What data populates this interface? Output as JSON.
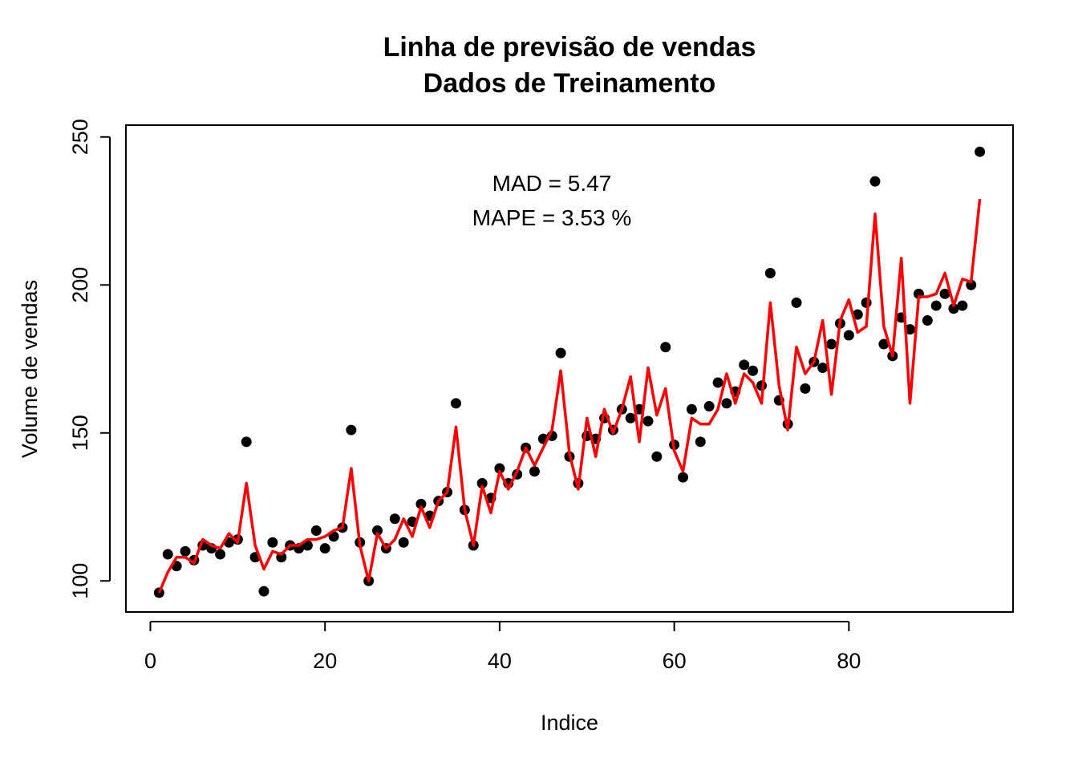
{
  "chart_data": {
    "type": "scatter",
    "title": "Linha de previsão de vendas",
    "subtitle": "Dados de Treinamento",
    "xlabel": "Indice",
    "ylabel": "Volume de vendas",
    "xlim": [
      -2.8,
      98.8
    ],
    "ylim": [
      89.5,
      254
    ],
    "xticks": [
      0,
      20,
      40,
      60,
      80
    ],
    "yticks": [
      100,
      150,
      200,
      250
    ],
    "grid": false,
    "annotations": [
      "MAD = 5.47",
      "MAPE = 3.53 %"
    ],
    "colors": {
      "points": "#000000",
      "line": "#ff0000"
    },
    "series": [
      {
        "kind": "points",
        "x": [
          1,
          2,
          3,
          4,
          5,
          6,
          7,
          8,
          9,
          10,
          11,
          12,
          13,
          14,
          15,
          16,
          17,
          18,
          19,
          20,
          21,
          22,
          23,
          24,
          25,
          26,
          27,
          28,
          29,
          30,
          31,
          32,
          33,
          34,
          35,
          36,
          37,
          38,
          39,
          40,
          41,
          42,
          43,
          44,
          45,
          46,
          47,
          48,
          49,
          50,
          51,
          52,
          53,
          54,
          55,
          56,
          57,
          58,
          59,
          60,
          61,
          62,
          63,
          64,
          65,
          66,
          67,
          68,
          69,
          70,
          71,
          72,
          73,
          74,
          75,
          76,
          77,
          78,
          79,
          80,
          81,
          82,
          83,
          84,
          85,
          86,
          87,
          88,
          89,
          90,
          91,
          92,
          93,
          94,
          95
        ],
        "values": [
          96,
          109,
          105,
          110,
          107,
          112,
          111,
          109,
          113,
          114,
          147,
          108,
          96.5,
          113,
          108,
          112,
          111,
          112,
          117,
          111,
          115,
          118,
          151,
          113,
          100,
          117,
          111,
          121,
          113,
          120,
          126,
          122,
          127,
          130,
          160,
          124,
          112,
          133,
          128,
          138,
          133,
          136,
          145,
          137,
          148,
          149,
          177,
          142,
          133,
          149,
          148,
          155,
          151,
          158,
          155,
          158,
          154,
          142,
          179,
          146,
          135,
          158,
          147,
          159,
          167,
          160,
          164,
          173,
          171,
          166,
          204,
          161,
          153,
          194,
          165,
          174,
          172,
          180,
          187,
          183,
          190,
          194,
          235,
          180,
          176,
          189,
          185,
          197,
          188,
          193,
          197,
          192,
          193,
          200,
          245
        ]
      },
      {
        "kind": "line",
        "x": [
          1,
          2,
          3,
          4,
          5,
          6,
          7,
          8,
          9,
          10,
          11,
          12,
          13,
          14,
          15,
          16,
          17,
          18,
          19,
          20,
          21,
          22,
          23,
          24,
          25,
          26,
          27,
          28,
          29,
          30,
          31,
          32,
          33,
          34,
          35,
          36,
          37,
          38,
          39,
          40,
          41,
          42,
          43,
          44,
          45,
          46,
          47,
          48,
          49,
          50,
          51,
          52,
          53,
          54,
          55,
          56,
          57,
          58,
          59,
          60,
          61,
          62,
          63,
          64,
          65,
          66,
          67,
          68,
          69,
          70,
          71,
          72,
          73,
          74,
          75,
          76,
          77,
          78,
          79,
          80,
          81,
          82,
          83,
          84,
          85,
          86,
          87,
          88,
          89,
          90,
          91,
          92,
          93,
          94,
          95
        ],
        "values": [
          96,
          103,
          108,
          108,
          106,
          114,
          112,
          111,
          116,
          113,
          133,
          112,
          104,
          110,
          109,
          112,
          112,
          114,
          114,
          115,
          117,
          118,
          138,
          112,
          100,
          116,
          111,
          114,
          121,
          115,
          125,
          118,
          127,
          130,
          152,
          124,
          112,
          132,
          123,
          137,
          131,
          137,
          145,
          139,
          145,
          151,
          171,
          143,
          131,
          155,
          142,
          158,
          150,
          158,
          169,
          147,
          172,
          156,
          165,
          144,
          137,
          155,
          153,
          153,
          158,
          170,
          160,
          170,
          167,
          160,
          194,
          166,
          151,
          179,
          170,
          174,
          188,
          163,
          188,
          195,
          184,
          186,
          224,
          186,
          176,
          209,
          160,
          196,
          196,
          197,
          204,
          193,
          202,
          201,
          229
        ]
      }
    ]
  }
}
